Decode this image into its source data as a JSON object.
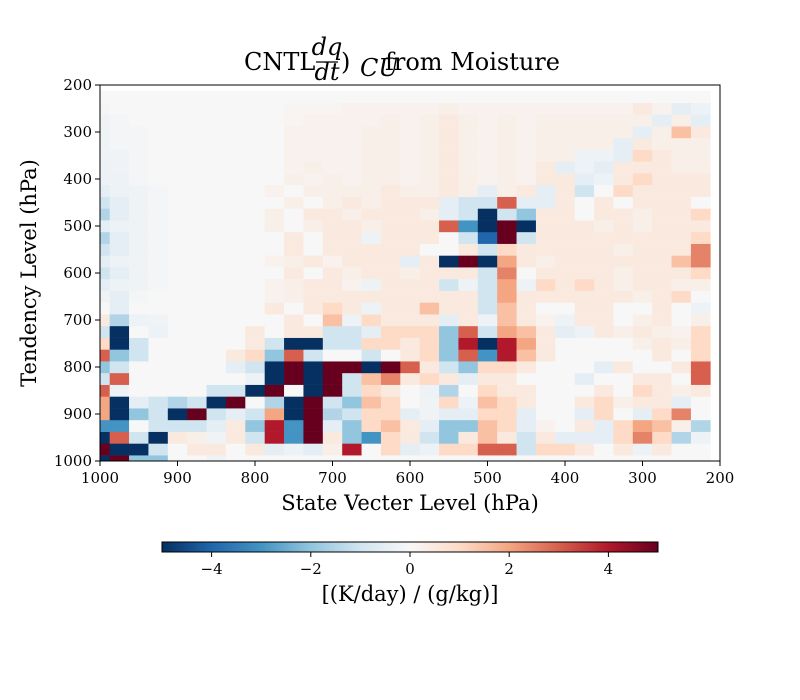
{
  "chart_data": {
    "type": "heatmap",
    "title": {
      "prefix": "CNTL ",
      "frac_num": "dq",
      "frac_den": "dt",
      "close": ")",
      "subscript": "CU",
      "suffix": " from Moisture"
    },
    "xlabel": "State Vecter Level (hPa)",
    "ylabel": "Tendency Level (hPa)",
    "xlim": [
      1000,
      200
    ],
    "ylim": [
      1000,
      200
    ],
    "x_ticks": [
      1000,
      900,
      800,
      700,
      600,
      500,
      400,
      300,
      200
    ],
    "y_ticks": [
      200,
      300,
      400,
      500,
      600,
      700,
      800,
      900,
      1000
    ],
    "grid_levels": {
      "start": 1000,
      "step": -25,
      "count": 32
    },
    "colorbar": {
      "cmap": "RdBu_r",
      "vmin": -5,
      "vmax": 5,
      "ticks": [
        -4,
        -2,
        0,
        2,
        4
      ],
      "tick_labels": [
        "−4",
        "−2",
        "0",
        "2",
        "4"
      ],
      "label": "[(K/day) / (g/kg)]"
    },
    "values": [
      [
        -5,
        5,
        -2,
        -2,
        0,
        0,
        -0.2,
        0,
        0,
        0,
        0,
        0,
        0,
        0,
        0,
        0,
        0,
        0,
        0,
        0,
        0,
        0,
        0,
        0,
        0,
        0,
        0,
        0,
        0,
        0,
        0,
        0
      ],
      [
        5,
        -5,
        -5,
        -1,
        0,
        0.5,
        0.5,
        0,
        0.5,
        -0.5,
        -0.3,
        -0.5,
        0.3,
        4,
        0,
        1,
        -0.5,
        -0.3,
        1,
        1,
        3,
        3,
        -1,
        1,
        1,
        0.5,
        0,
        0.5,
        -0.3,
        0.5,
        0,
        0
      ],
      [
        -5,
        3,
        -1,
        -5,
        0.5,
        0.3,
        -0.2,
        0.5,
        -1,
        4,
        -3,
        5,
        0.5,
        -2,
        -3,
        1,
        0.5,
        -1,
        -2,
        0.5,
        1.5,
        0.5,
        -1,
        0.5,
        -0.5,
        -0.5,
        -0.5,
        1,
        2.5,
        1,
        -1.5,
        -0.3
      ],
      [
        -3,
        -3,
        0,
        -1,
        -1,
        -1,
        -0.5,
        0.5,
        -2,
        4,
        -3,
        5,
        -0.5,
        -2,
        1,
        1.5,
        0.5,
        -0.5,
        -2,
        -2,
        1.5,
        1,
        -0.5,
        0.2,
        0,
        0.5,
        -0.5,
        1,
        2,
        1.5,
        0.3,
        -1.5
      ],
      [
        2,
        -5,
        -2,
        -1,
        -5,
        5,
        -1,
        -0.5,
        -1,
        2,
        -5,
        5,
        -1.5,
        -1,
        1,
        1,
        -0.5,
        -0.2,
        -0.5,
        -0.5,
        1,
        1,
        -0.5,
        0,
        0,
        -0.5,
        1,
        0,
        -0.5,
        1,
        2.5,
        0
      ],
      [
        2,
        -5,
        -0.5,
        -1,
        -1.5,
        -1,
        -5,
        5,
        0,
        -1.5,
        -5,
        5,
        -1,
        -2,
        1.5,
        1,
        0,
        -0.2,
        1,
        -0.3,
        1.5,
        1,
        0.5,
        0,
        0,
        0.5,
        1,
        0.3,
        0.5,
        0.5,
        -0.5,
        0
      ],
      [
        3,
        -0.3,
        0,
        0,
        0,
        0,
        -1,
        -1,
        -5,
        5,
        0,
        -5,
        5,
        -1,
        1,
        0.5,
        0,
        -0.3,
        -1.5,
        0,
        1,
        0.5,
        0.5,
        0,
        0,
        0,
        0.5,
        0,
        1,
        0.5,
        0.3,
        0.5
      ],
      [
        -1,
        3,
        0,
        0,
        0,
        0,
        0,
        0,
        -0.3,
        -5,
        5,
        -5,
        5,
        -1,
        1.5,
        2.5,
        0.5,
        1,
        0.5,
        -0.5,
        0.5,
        0.5,
        0,
        0,
        0,
        -0.5,
        0,
        0,
        0.5,
        0.5,
        0,
        3
      ],
      [
        -2,
        -1,
        0,
        0,
        0,
        0,
        0,
        -0.5,
        -1,
        -5,
        5,
        -5,
        5,
        5,
        -5,
        5,
        3,
        0.5,
        -1,
        -2,
        1,
        1,
        0.5,
        0,
        0,
        0,
        -0.5,
        0.5,
        0,
        0,
        0.5,
        3
      ],
      [
        3,
        -2,
        -1,
        0,
        0,
        0,
        0,
        0.5,
        1,
        -2,
        3,
        -1,
        0,
        0,
        -1,
        0,
        0.5,
        1,
        -2,
        3,
        -3,
        4,
        1.5,
        0.5,
        0,
        0,
        0,
        0,
        0,
        0.5,
        0,
        1
      ],
      [
        1,
        -5,
        -1,
        0,
        0,
        0,
        0,
        0,
        0.5,
        -1,
        -5,
        -5,
        -1,
        -1,
        1,
        1,
        0.5,
        1,
        -2,
        4,
        -5,
        4,
        2,
        0.5,
        0,
        0,
        0,
        0,
        0.3,
        0.5,
        0.3,
        1
      ],
      [
        -1,
        -5,
        0,
        -0.3,
        0,
        0,
        0,
        0,
        0.5,
        0,
        0.5,
        0.5,
        -1,
        -1,
        -0.5,
        1,
        1,
        1,
        -2,
        3,
        -1,
        2,
        1.5,
        0.5,
        -0.5,
        -0.3,
        0.5,
        0.3,
        0.5,
        0.3,
        0.2,
        1
      ],
      [
        0.5,
        -1.5,
        -0.3,
        -0.2,
        0,
        0,
        0,
        0,
        0,
        0,
        0.5,
        0,
        1.5,
        -0.3,
        1,
        0.5,
        0.5,
        0.5,
        -0.5,
        0.5,
        -0.3,
        1.5,
        0.5,
        0.2,
        -0.3,
        0.5,
        0.5,
        0,
        0.3,
        0.5,
        0,
        0.3
      ],
      [
        0,
        -0.5,
        0,
        0,
        0,
        0,
        0,
        0,
        0,
        0.5,
        0,
        0.5,
        1,
        0.5,
        -0.3,
        0.5,
        0.5,
        1.5,
        0.5,
        0.5,
        -1,
        1.5,
        0.5,
        0,
        0,
        0.5,
        0.5,
        0,
        0,
        0.5,
        0,
        -0.3
      ],
      [
        -0.2,
        -0.5,
        -0.1,
        0,
        0,
        0,
        0,
        0,
        0,
        0.2,
        0.3,
        0.5,
        0.5,
        0.5,
        0.5,
        0.5,
        0.5,
        0.5,
        0.5,
        0.5,
        -1,
        2,
        0.5,
        0.5,
        0.5,
        0.5,
        0.5,
        0.5,
        0.3,
        0.5,
        1,
        0
      ],
      [
        -0.5,
        -0.3,
        -0.2,
        -0.1,
        0,
        0,
        0,
        0,
        0,
        0.2,
        0.3,
        0.5,
        0.5,
        0.2,
        -0.3,
        0.5,
        0.5,
        0.5,
        -1,
        -0.3,
        -1,
        2,
        -0.3,
        1,
        0.5,
        1,
        0.5,
        0.3,
        0.5,
        0.5,
        0.3,
        0.3
      ],
      [
        -1,
        -0.5,
        -0.2,
        -0.1,
        0,
        0,
        0,
        0,
        0,
        0,
        0.5,
        0,
        0.5,
        0.3,
        0.5,
        0.5,
        0.3,
        0.5,
        0.5,
        0.5,
        -1,
        2.5,
        0,
        0.5,
        0.5,
        0.5,
        0.5,
        0.3,
        0.5,
        0.5,
        0.5,
        1
      ],
      [
        -0.5,
        -0.3,
        -0.2,
        -0.1,
        0,
        0,
        0,
        0,
        0,
        0.2,
        0.3,
        0.5,
        0.2,
        0.5,
        0.5,
        0.5,
        -0.5,
        0.5,
        -5,
        5,
        -5,
        2,
        0.5,
        0.3,
        0.5,
        0.5,
        0.5,
        0.5,
        0.5,
        0.5,
        1.5,
        2.5
      ],
      [
        -1,
        -0.5,
        -0.2,
        -0.1,
        0,
        0,
        0,
        0,
        0,
        0,
        0.5,
        0,
        0.5,
        0.5,
        0.5,
        0.5,
        0.5,
        0,
        0,
        0.5,
        -1,
        1,
        0.5,
        0.5,
        0.5,
        0.5,
        0.5,
        0.3,
        0.5,
        0.5,
        0.5,
        2.5
      ],
      [
        -1.5,
        -0.5,
        -0.2,
        -0.1,
        0,
        0,
        0,
        0,
        0,
        0,
        0.5,
        0,
        0.5,
        0.5,
        -0.3,
        0.5,
        0.5,
        0.5,
        0,
        -1,
        -4,
        5,
        -1,
        0.5,
        0.5,
        0.5,
        0.5,
        0.5,
        0.5,
        0.5,
        0.5,
        1
      ],
      [
        -0.5,
        -0.3,
        -0.2,
        -0.1,
        0,
        0,
        0,
        0,
        0,
        0.3,
        0,
        0.3,
        0.5,
        0.5,
        0.3,
        0.5,
        0.5,
        0.5,
        3,
        -3,
        -5,
        5,
        -5,
        0.5,
        0.5,
        0.5,
        0.3,
        0.5,
        0.3,
        0.5,
        0.5,
        0.5
      ],
      [
        -1.5,
        -0.5,
        -0.2,
        -0.1,
        0,
        0,
        0,
        0,
        0,
        0.3,
        0,
        0.5,
        0.5,
        0.3,
        0.5,
        0.5,
        0.5,
        0.3,
        -0.5,
        -1,
        -5,
        -1,
        -2,
        0.5,
        0.5,
        0,
        0.5,
        0.5,
        0.3,
        0.5,
        0.5,
        1
      ],
      [
        -1,
        -0.5,
        -0.2,
        -0.1,
        0,
        0,
        0,
        0,
        0,
        0,
        0.3,
        0,
        0.3,
        0.5,
        0.3,
        0.5,
        0.5,
        0.5,
        -0.5,
        -1,
        -1,
        3,
        -0.5,
        -0.5,
        0.5,
        0,
        0.5,
        0,
        0.5,
        0.5,
        0.5,
        0
      ],
      [
        -0.5,
        -0.3,
        -0.2,
        -0.1,
        0,
        0,
        0,
        0,
        0,
        0.2,
        0,
        0.3,
        0.3,
        0.3,
        0.3,
        0.5,
        0.3,
        0.3,
        0.5,
        0.3,
        -0.5,
        0.3,
        0.5,
        -0.5,
        0.5,
        -1,
        0,
        1,
        0.5,
        0.5,
        0.5,
        0.5
      ],
      [
        -0.3,
        -0.3,
        -0.1,
        0,
        0,
        0,
        0,
        0,
        0,
        0,
        0.3,
        0.2,
        0.3,
        0.2,
        0.3,
        0.3,
        0.2,
        0.3,
        0.5,
        0.3,
        0.2,
        0.3,
        0.2,
        0.5,
        0.5,
        -0.5,
        -0.3,
        0.5,
        1,
        0.5,
        0.5,
        0.5
      ],
      [
        -0.3,
        -0.2,
        -0.1,
        0,
        0,
        0,
        0,
        0,
        0,
        0,
        0.2,
        0.3,
        0.2,
        0.2,
        0.3,
        0.3,
        0.2,
        0.3,
        0.5,
        0.3,
        0.2,
        0.3,
        0.2,
        0.5,
        -0.5,
        -0.3,
        -0.5,
        0.5,
        0.5,
        0.5,
        0.3,
        0.3
      ],
      [
        -0.2,
        -0.2,
        -0.1,
        0,
        0,
        0,
        0,
        0,
        0,
        0,
        0.2,
        0.2,
        0.2,
        0.2,
        0.3,
        0.3,
        0.2,
        0.3,
        0.5,
        0.3,
        0.2,
        0.3,
        0.2,
        0.3,
        0.3,
        -0.3,
        -0.3,
        -0.5,
        1,
        0.5,
        0.3,
        0.3
      ],
      [
        -0.2,
        -0.1,
        -0.1,
        0,
        0,
        0,
        0,
        0,
        0,
        0,
        0.2,
        0.2,
        0.2,
        0.2,
        0.3,
        0.3,
        0.2,
        0.3,
        0.5,
        0.3,
        0.2,
        0.3,
        0.2,
        0.3,
        0.3,
        0.3,
        0.3,
        -0.5,
        0.5,
        0.3,
        0.3,
        0.3
      ],
      [
        -0.2,
        -0.1,
        -0.1,
        0,
        0,
        0,
        0,
        0,
        0,
        0,
        0.2,
        0.2,
        0.2,
        0.2,
        0.3,
        0.3,
        0.2,
        0.3,
        0.5,
        0.3,
        0.2,
        0.3,
        0.2,
        0.3,
        0.3,
        0.3,
        0.3,
        0.3,
        -0.5,
        0.3,
        1.5,
        0.5
      ],
      [
        -0.2,
        -0.1,
        0,
        0,
        0,
        0,
        0,
        0,
        0,
        0,
        0.1,
        0.2,
        0.2,
        0.2,
        0.2,
        0.3,
        0.2,
        0.3,
        0.5,
        0.3,
        0.2,
        0.3,
        0.2,
        0.3,
        0.3,
        0.3,
        0.3,
        0.3,
        0.3,
        -0.5,
        0.3,
        -0.5
      ],
      [
        -0.1,
        0,
        0,
        0,
        0,
        0,
        0,
        0,
        0,
        0,
        0.1,
        0.1,
        0.1,
        0.2,
        0.2,
        0.2,
        0.2,
        0.2,
        0.3,
        0.2,
        0.2,
        0.2,
        0.2,
        0.2,
        0.2,
        0.2,
        0.2,
        0.2,
        0.5,
        0.2,
        -0.5,
        -0.3
      ],
      [
        0,
        0,
        0,
        0,
        0,
        0,
        0,
        0,
        0,
        0,
        0,
        0,
        0,
        0,
        0,
        0,
        0,
        0,
        0,
        0,
        0,
        0,
        0,
        0,
        0,
        0,
        0,
        0,
        0,
        0,
        0,
        0
      ]
    ]
  }
}
